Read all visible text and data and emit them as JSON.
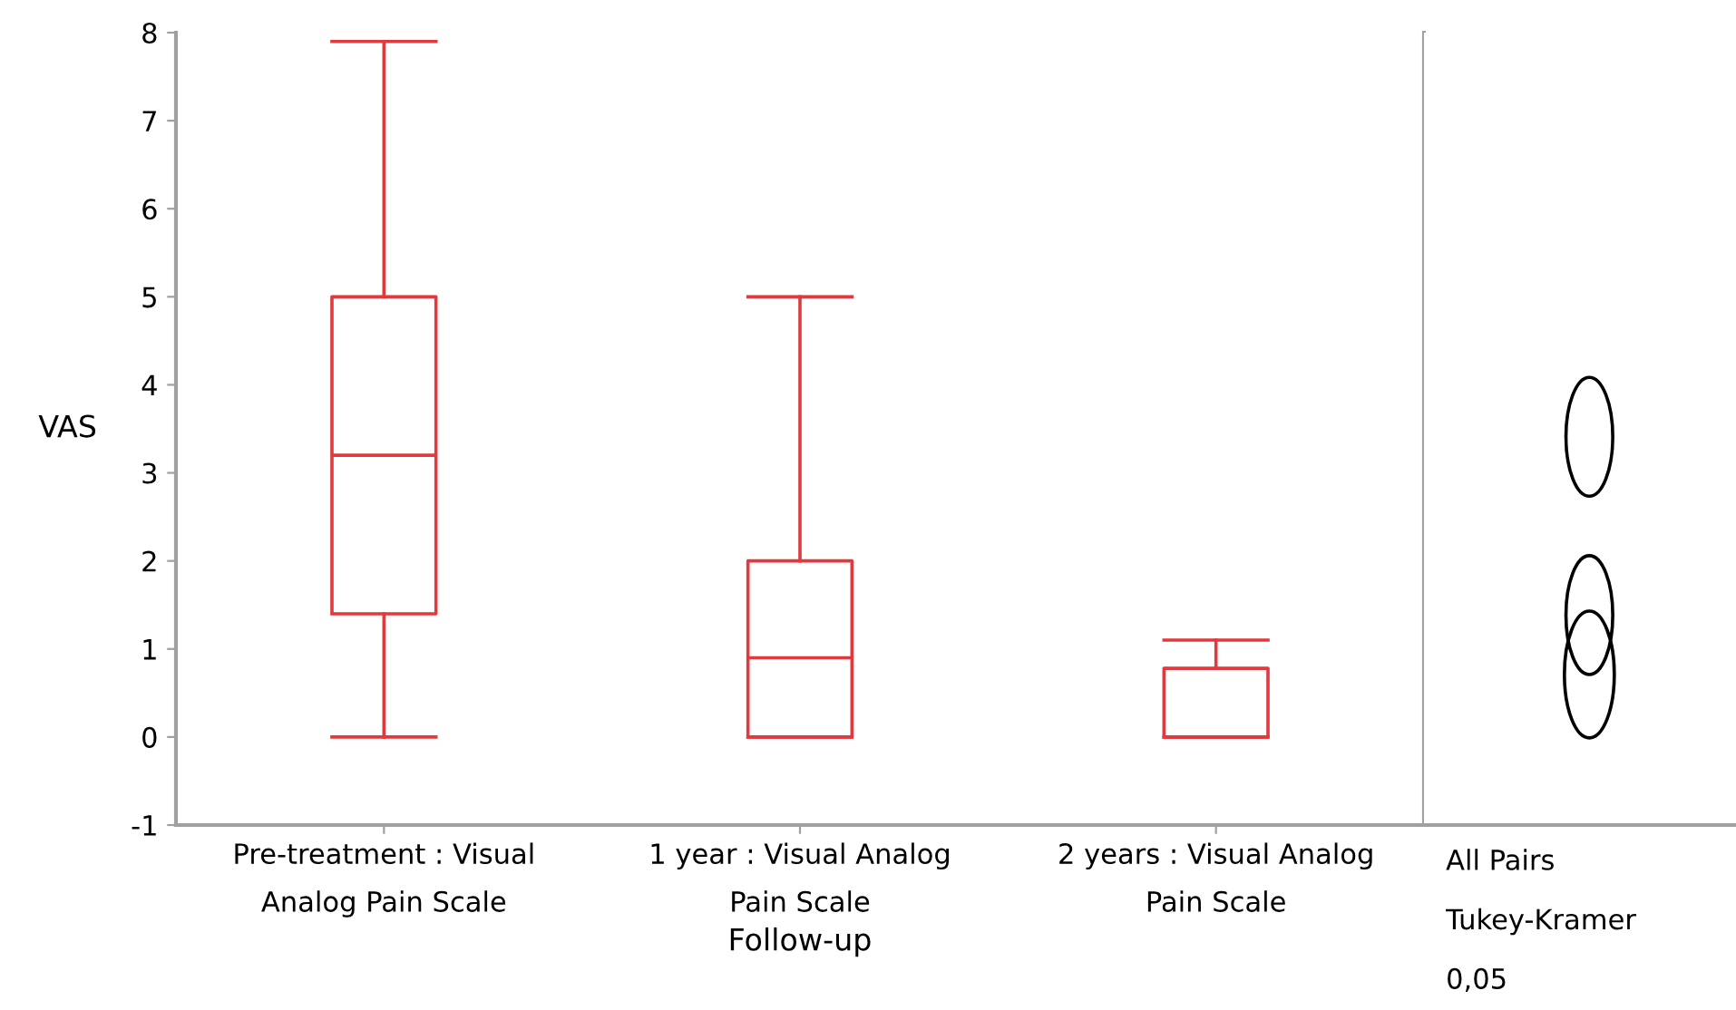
{
  "chart_data": [
    {
      "type": "box",
      "xlabel": "Follow-up",
      "ylabel": "VAS",
      "categories": [
        "Pre-treatment : Visual\nAnalog Pain Scale",
        "1 year : Visual Analog\nPain Scale",
        "2 years : Visual Analog\nPain Scale"
      ],
      "color": "#e0393e",
      "boxes": [
        {
          "low": 0,
          "q1": 1.4,
          "median": 3.2,
          "q3": 5,
          "high": 7.9
        },
        {
          "low": 0,
          "q1": 0,
          "median": 0.9,
          "q3": 2,
          "high": 5
        },
        {
          "low": 0,
          "q1": 0,
          "median": 0,
          "q3": 0.78,
          "high": 1.1
        }
      ],
      "ylim": [
        -1,
        8
      ],
      "yticks": [
        -1,
        0,
        1,
        2,
        3,
        4,
        5,
        6,
        7,
        8
      ]
    },
    {
      "type": "other",
      "annotations": [
        "All Pairs",
        "Tukey-Kramer",
        "0,05"
      ]
    }
  ]
}
